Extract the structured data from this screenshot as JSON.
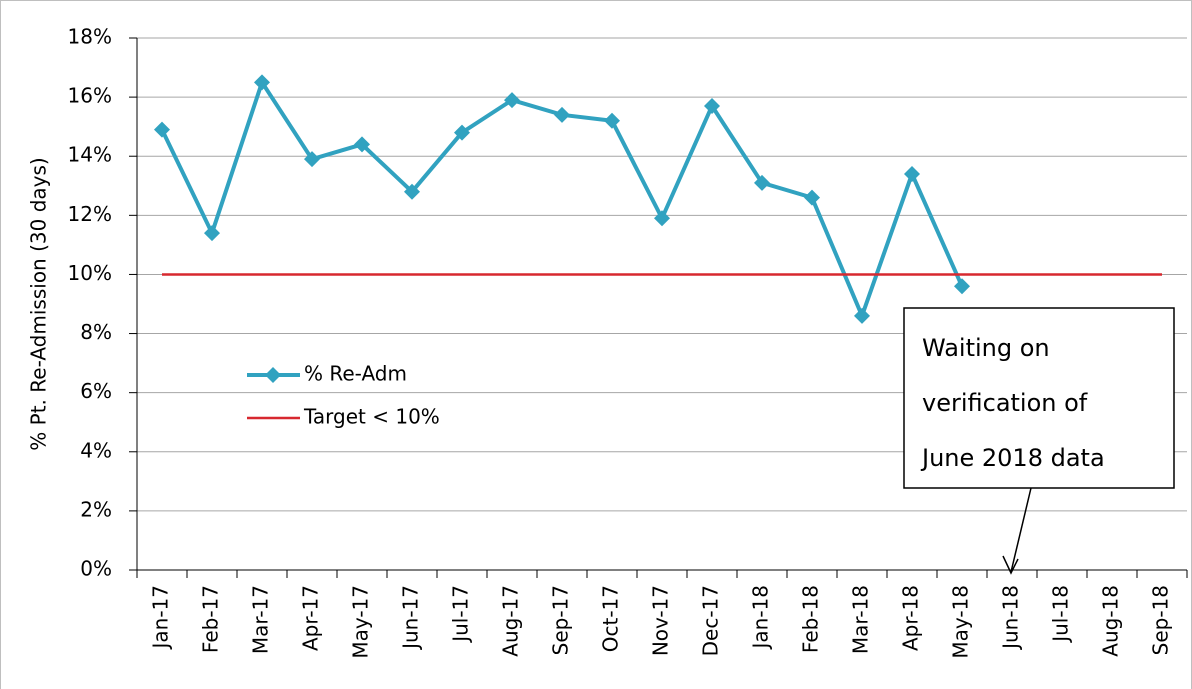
{
  "chart_data": {
    "type": "line",
    "y_label": "% Pt. Re-Admission (30 days)",
    "categories": [
      "Jan-17",
      "Feb-17",
      "Mar-17",
      "Apr-17",
      "May-17",
      "Jun-17",
      "Jul-17",
      "Aug-17",
      "Sep-17",
      "Oct-17",
      "Nov-17",
      "Dec-17",
      "Jan-18",
      "Feb-18",
      "Mar-18",
      "Apr-18",
      "May-18",
      "Jun-18",
      "Jul-18",
      "Aug-18",
      "Sep-18"
    ],
    "series": [
      {
        "name": "% Re-Adm",
        "color": "#31a2c0",
        "marker": "diamond",
        "values": [
          14.9,
          11.4,
          16.5,
          13.9,
          14.4,
          12.8,
          14.8,
          15.9,
          15.4,
          15.2,
          11.9,
          15.7,
          13.1,
          12.6,
          8.6,
          13.4,
          9.6,
          null,
          null,
          null,
          null
        ]
      },
      {
        "name": "Target < 10%",
        "color": "#d7282f",
        "values": [
          10,
          10,
          10,
          10,
          10,
          10,
          10,
          10,
          10,
          10,
          10,
          10,
          10,
          10,
          10,
          10,
          10,
          10,
          10,
          10,
          10
        ]
      }
    ],
    "ylim": [
      0,
      18
    ],
    "yticks": [
      {
        "value": 0,
        "label": "0%"
      },
      {
        "value": 2,
        "label": "2%"
      },
      {
        "value": 4,
        "label": "4%"
      },
      {
        "value": 6,
        "label": "6%"
      },
      {
        "value": 8,
        "label": "8%"
      },
      {
        "value": 10,
        "label": "10%"
      },
      {
        "value": 12,
        "label": "12%"
      },
      {
        "value": 14,
        "label": "14%"
      },
      {
        "value": 16,
        "label": "16%"
      },
      {
        "value": 18,
        "label": "18%"
      }
    ],
    "grid": true,
    "annotation": {
      "lines": [
        "Waiting on",
        "verification of",
        "June 2018 data"
      ]
    }
  }
}
